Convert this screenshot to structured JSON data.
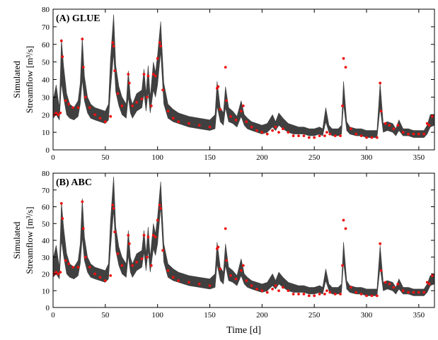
{
  "chart_data": [
    {
      "type": "scatter",
      "title": "(A) GLUE",
      "ylabel_line1": "Simulated",
      "ylabel_line2": "Streamflow [m³/s]",
      "xlabel": "",
      "xlim": [
        0,
        365
      ],
      "ylim": [
        0,
        80
      ],
      "xticks": [
        0,
        50,
        100,
        150,
        200,
        250,
        300,
        350
      ],
      "yticks": [
        0,
        10,
        20,
        30,
        40,
        50,
        60,
        70,
        80
      ],
      "grid": false,
      "colors": {
        "band": "#404040",
        "observed": "#ee1111"
      },
      "band": {
        "x": [
          0,
          3,
          6,
          8,
          10,
          13,
          16,
          20,
          24,
          26,
          28,
          30,
          33,
          36,
          40,
          45,
          50,
          53,
          55,
          58,
          60,
          63,
          66,
          70,
          72,
          74,
          76,
          80,
          85,
          87,
          89,
          91,
          93,
          96,
          98,
          100,
          103,
          106,
          110,
          115,
          120,
          130,
          140,
          150,
          155,
          157,
          160,
          163,
          165,
          168,
          172,
          176,
          180,
          183,
          186,
          190,
          195,
          200,
          205,
          210,
          213,
          216,
          220,
          225,
          230,
          235,
          240,
          245,
          250,
          255,
          258,
          261,
          264,
          267,
          270,
          273,
          276,
          278,
          281,
          284,
          290,
          295,
          300,
          305,
          310,
          313,
          316,
          320,
          325,
          328,
          331,
          335,
          340,
          345,
          350,
          355,
          358,
          361,
          365
        ],
        "upper": [
          28,
          37,
          24,
          63,
          48,
          32,
          26,
          24,
          28,
          38,
          64,
          42,
          30,
          26,
          24,
          23,
          22,
          26,
          52,
          77,
          48,
          36,
          30,
          26,
          45,
          30,
          26,
          32,
          34,
          46,
          32,
          48,
          30,
          50,
          44,
          54,
          73,
          38,
          26,
          23,
          21,
          19,
          18,
          17,
          20,
          39,
          24,
          21,
          36,
          24,
          22,
          19,
          28,
          20,
          18,
          16,
          15,
          14,
          15,
          20,
          16,
          21,
          18,
          15,
          14,
          13,
          13,
          12,
          12,
          13,
          12,
          24,
          14,
          12,
          12,
          12,
          14,
          39,
          16,
          13,
          12,
          12,
          11,
          11,
          11,
          38,
          15,
          16,
          15,
          12,
          17,
          12,
          12,
          11,
          11,
          11,
          14,
          20,
          20
        ],
        "lower": [
          18,
          20,
          17,
          38,
          30,
          20,
          18,
          17,
          19,
          26,
          40,
          28,
          21,
          18,
          17,
          16,
          15,
          17,
          34,
          55,
          33,
          25,
          20,
          18,
          30,
          21,
          18,
          22,
          24,
          32,
          22,
          33,
          21,
          34,
          30,
          37,
          56,
          26,
          18,
          16,
          15,
          13,
          12,
          11,
          12,
          25,
          16,
          14,
          24,
          16,
          15,
          13,
          19,
          14,
          12,
          11,
          10,
          9,
          10,
          13,
          11,
          14,
          12,
          10,
          9,
          9,
          9,
          8,
          8,
          9,
          8,
          16,
          10,
          8,
          8,
          8,
          9,
          26,
          11,
          9,
          8,
          8,
          7,
          7,
          7,
          24,
          10,
          11,
          10,
          8,
          11,
          8,
          8,
          7,
          7,
          7,
          9,
          13,
          14
        ]
      },
      "observed": {
        "x": [
          1,
          3,
          5,
          7,
          8,
          9,
          12,
          15,
          19,
          24,
          28,
          29,
          31,
          35,
          40,
          45,
          50,
          55,
          57,
          58,
          59,
          62,
          66,
          72,
          73,
          76,
          80,
          85,
          87,
          90,
          91,
          94,
          96,
          98,
          100,
          102,
          103,
          105,
          110,
          115,
          120,
          130,
          140,
          150,
          157,
          158,
          160,
          165,
          166,
          170,
          175,
          180,
          182,
          185,
          190,
          195,
          200,
          205,
          210,
          213,
          216,
          220,
          225,
          230,
          235,
          240,
          245,
          250,
          255,
          260,
          262,
          265,
          270,
          275,
          277,
          278,
          280,
          285,
          290,
          295,
          300,
          305,
          310,
          313,
          314,
          318,
          322,
          326,
          330,
          335,
          340,
          345,
          350,
          355,
          358,
          360,
          363
        ],
        "y": [
          20,
          21,
          20,
          21,
          62,
          53,
          28,
          26,
          24,
          24,
          63,
          47,
          30,
          24,
          20,
          18,
          16,
          19,
          61,
          59,
          45,
          32,
          25,
          43,
          38,
          25,
          27,
          29,
          43,
          30,
          42,
          25,
          43,
          42,
          52,
          61,
          59,
          34,
          22,
          18,
          16,
          15,
          14,
          13,
          35,
          36,
          23,
          47,
          28,
          19,
          17,
          22,
          25,
          16,
          13,
          11,
          10,
          9,
          11,
          13,
          10,
          12,
          10,
          8,
          8,
          8,
          7,
          7,
          8,
          8,
          10,
          9,
          8,
          8,
          25,
          52,
          47,
          12,
          9,
          8,
          7,
          7,
          7,
          38,
          22,
          15,
          14,
          12,
          14,
          10,
          9,
          9,
          9,
          9,
          15,
          14,
          19
        ]
      }
    },
    {
      "type": "scatter",
      "title": "(B) ABC",
      "ylabel_line1": "Simulated",
      "ylabel_line2": "Streamflow [m³/s]",
      "xlabel": "Time [d]",
      "xlim": [
        0,
        365
      ],
      "ylim": [
        0,
        80
      ],
      "xticks": [
        0,
        50,
        100,
        150,
        200,
        250,
        300,
        350
      ],
      "yticks": [
        0,
        10,
        20,
        30,
        40,
        50,
        60,
        70,
        80
      ],
      "grid": false,
      "colors": {
        "band": "#404040",
        "observed": "#ee1111"
      },
      "band": {
        "x": [
          0,
          3,
          6,
          8,
          10,
          13,
          16,
          20,
          24,
          26,
          28,
          30,
          33,
          36,
          40,
          45,
          50,
          53,
          55,
          58,
          60,
          63,
          66,
          70,
          72,
          74,
          76,
          80,
          85,
          87,
          89,
          91,
          93,
          96,
          98,
          100,
          103,
          106,
          110,
          115,
          120,
          130,
          140,
          150,
          155,
          157,
          160,
          163,
          165,
          168,
          172,
          176,
          180,
          183,
          186,
          190,
          195,
          200,
          205,
          210,
          213,
          216,
          220,
          225,
          230,
          235,
          240,
          245,
          250,
          255,
          258,
          261,
          264,
          267,
          270,
          273,
          276,
          278,
          281,
          284,
          290,
          295,
          300,
          305,
          310,
          313,
          316,
          320,
          325,
          328,
          331,
          335,
          340,
          345,
          350,
          355,
          358,
          361,
          365
        ],
        "upper": [
          29,
          37,
          24,
          63,
          48,
          32,
          26,
          24,
          28,
          38,
          65,
          42,
          30,
          26,
          24,
          23,
          22,
          26,
          52,
          78,
          48,
          36,
          30,
          26,
          46,
          30,
          26,
          32,
          34,
          46,
          32,
          48,
          30,
          50,
          44,
          54,
          75,
          38,
          26,
          23,
          21,
          19,
          18,
          17,
          20,
          39,
          24,
          21,
          38,
          24,
          22,
          19,
          29,
          20,
          18,
          16,
          15,
          14,
          15,
          20,
          16,
          21,
          18,
          15,
          14,
          13,
          13,
          12,
          12,
          13,
          12,
          23,
          14,
          12,
          12,
          12,
          14,
          39,
          16,
          13,
          12,
          12,
          11,
          11,
          11,
          37,
          15,
          16,
          15,
          12,
          17,
          12,
          12,
          11,
          11,
          11,
          14,
          19,
          20
        ],
        "lower": [
          18,
          20,
          17,
          40,
          31,
          20,
          18,
          17,
          19,
          26,
          42,
          28,
          21,
          18,
          17,
          16,
          15,
          17,
          35,
          58,
          34,
          25,
          20,
          18,
          31,
          21,
          18,
          22,
          24,
          33,
          22,
          34,
          21,
          35,
          31,
          38,
          60,
          27,
          18,
          16,
          15,
          13,
          12,
          11,
          12,
          26,
          16,
          14,
          25,
          16,
          15,
          13,
          19,
          14,
          12,
          11,
          10,
          9,
          10,
          13,
          11,
          14,
          12,
          10,
          9,
          9,
          9,
          8,
          8,
          9,
          8,
          16,
          10,
          8,
          8,
          8,
          9,
          27,
          11,
          9,
          8,
          8,
          7,
          7,
          7,
          24,
          10,
          11,
          10,
          8,
          11,
          8,
          8,
          7,
          7,
          7,
          9,
          13,
          14
        ]
      },
      "observed": {
        "x": [
          1,
          3,
          5,
          7,
          8,
          9,
          12,
          15,
          19,
          24,
          28,
          29,
          31,
          35,
          40,
          45,
          50,
          55,
          57,
          58,
          59,
          62,
          66,
          72,
          73,
          76,
          80,
          85,
          87,
          90,
          91,
          94,
          96,
          98,
          100,
          102,
          103,
          105,
          110,
          115,
          120,
          130,
          140,
          150,
          157,
          158,
          160,
          165,
          166,
          170,
          175,
          180,
          182,
          185,
          190,
          195,
          200,
          205,
          210,
          213,
          216,
          220,
          225,
          230,
          235,
          240,
          245,
          250,
          255,
          260,
          262,
          265,
          270,
          275,
          277,
          278,
          280,
          285,
          290,
          295,
          300,
          305,
          310,
          313,
          314,
          318,
          322,
          326,
          330,
          335,
          340,
          345,
          350,
          355,
          358,
          360,
          363
        ],
        "y": [
          20,
          21,
          20,
          21,
          62,
          53,
          28,
          26,
          24,
          24,
          63,
          47,
          30,
          24,
          20,
          18,
          16,
          19,
          61,
          59,
          45,
          32,
          25,
          43,
          38,
          25,
          27,
          29,
          43,
          30,
          42,
          25,
          43,
          42,
          52,
          61,
          59,
          34,
          22,
          18,
          16,
          15,
          14,
          13,
          35,
          36,
          23,
          47,
          28,
          19,
          17,
          22,
          25,
          16,
          13,
          11,
          10,
          9,
          11,
          13,
          10,
          12,
          10,
          8,
          8,
          8,
          7,
          7,
          8,
          8,
          10,
          9,
          8,
          8,
          25,
          52,
          47,
          12,
          9,
          8,
          7,
          7,
          7,
          38,
          22,
          15,
          14,
          12,
          14,
          10,
          9,
          9,
          9,
          9,
          15,
          14,
          19
        ]
      }
    }
  ]
}
